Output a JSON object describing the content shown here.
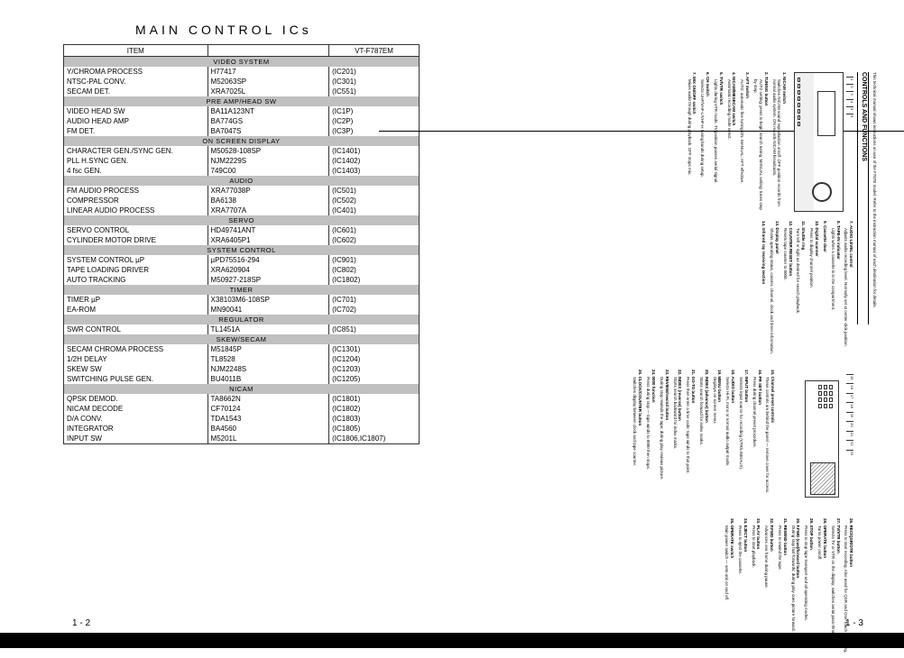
{
  "title": "MAIN CONTROL ICs",
  "page_left": "1 - 2",
  "page_right": "1 - 3",
  "header": {
    "c1": "ITEM",
    "c3": "VT-F787EM"
  },
  "sections": [
    {
      "name": "VIDEO SYSTEM",
      "rows": [
        [
          "Y/CHROMA PROCESS",
          "H77417",
          "(IC201)"
        ],
        [
          "NTSC-PAL CONV.",
          "M52063SP",
          "(IC301)"
        ],
        [
          "SECAM DET.",
          "XRA7025L",
          "(IC551)"
        ]
      ]
    },
    {
      "name": "PRE AMP/HEAD SW",
      "rows": [
        [
          "VIDEO HEAD SW",
          "BA11A123NT",
          "(IC1P)"
        ],
        [
          "AUDIO HEAD AMP",
          "BA774GS",
          "(IC2P)"
        ],
        [
          "FM DET.",
          "BA7047S",
          "(IC3P)"
        ]
      ]
    },
    {
      "name": "ON SCREEN DISPLAY",
      "rows": [
        [
          "CHARACTER GEN./SYNC GEN.",
          "M50528-108SP",
          "(IC1401)"
        ],
        [
          "PLL H.SYNC GEN.",
          "NJM2229S",
          "(IC1402)"
        ],
        [
          "4 fsc GEN.",
          "749C00",
          "(IC1403)"
        ]
      ]
    },
    {
      "name": "AUDIO",
      "rows": [
        [
          "FM AUDIO PROCESS",
          "XRA77038P",
          "(IC501)"
        ],
        [
          "COMPRESSOR",
          "BA6138",
          "(IC502)"
        ],
        [
          "LINEAR AUDIO PROCESS",
          "XRA7707A",
          "(IC401)"
        ]
      ]
    },
    {
      "name": "SERVO",
      "rows": [
        [
          "SERVO CONTROL",
          "HD49741ANT",
          "(IC601)"
        ],
        [
          "CYLINDER MOTOR DRIVE",
          "XRA6405P1",
          "(IC602)"
        ]
      ]
    },
    {
      "name": "SYSTEM CONTROL",
      "rows": [
        [
          "SYSTEM CONTROL µP",
          "µPD75516-294",
          "(IC901)"
        ],
        [
          "TAPE LOADING DRIVER",
          "XRA620904",
          "(IC802)"
        ],
        [
          "AUTO TRACKING",
          "M50927-218SP",
          "(IC1802)"
        ]
      ]
    },
    {
      "name": "TIMER",
      "rows": [
        [
          "TIMER µP",
          "X38103M6-108SP",
          "(IC701)"
        ],
        [
          "EA-ROM",
          "MN90041",
          "(IC702)"
        ]
      ]
    },
    {
      "name": "REGULATOR",
      "rows": [
        [
          "SWR CONTROL",
          "TL1451A",
          "(IC851)"
        ]
      ]
    },
    {
      "name": "SKEW/SECAM",
      "rows": [
        [
          "SECAM CHROMA PROCESS",
          "M51845P",
          "(IC1301)"
        ],
        [
          "1/2H DELAY",
          "TL8528",
          "(IC1204)"
        ],
        [
          "SKEW SW",
          "NJM2248S",
          "(IC1203)"
        ],
        [
          "SWITCHING PULSE GEN.",
          "BU4011B",
          "(IC1205)"
        ]
      ]
    },
    {
      "name": "NICAM",
      "rows": [
        [
          "QPSK DEMOD.",
          "TA8662N",
          "(IC1801)"
        ],
        [
          "NICAM DECODE",
          "CF70124",
          "(IC1802)"
        ],
        [
          "D/A CONV.",
          "TDA1543",
          "(IC1803)"
        ],
        [
          "INTEGRATOR",
          "BA4560",
          "(IC1805)"
        ],
        [
          "INPUT SW",
          "M5201L",
          "(IC1806,IC1807)"
        ]
      ]
    }
  ],
  "controls_header": "CONTROLS AND FUNCTIONS",
  "intro": "This technical manual shows instructions on use of the F787E model. Refer to the instruction manual of each destination for details.",
  "front_items": [
    {
      "n": "1",
      "t": "NICAM switch",
      "d": "Switches NICAM sound reproduction on/off. OFF position records from normal audio system. ON records NICAM broadcasts."
    },
    {
      "n": "2",
      "t": "TUNING button",
      "d": "AUTO setting: press to begin search tuning. MANUAL setting: tunes step by step."
    },
    {
      "n": "3",
      "t": "AFT switch",
      "d": "AUTO: automatic fine tuning ON. MANUAL: AFT effective."
    },
    {
      "n": "4",
      "t": "NICAM/MESECAM switch",
      "d": "Automatic recording mode select."
    },
    {
      "n": "5",
      "t": "TV/VTR switch",
      "d": "Lights during VTR mode. TV position passes aerial signal."
    },
    {
      "n": "6",
      "t": "CH switch",
      "d": "Selects UHF/VHF-L/VHF-H tuning bands during setup."
    },
    {
      "n": "7",
      "t": "MIX ON/OFF switch",
      "d": "Mixes audio through during playback. OFF stops mix."
    },
    {
      "n": "7",
      "t": "AUDIO LEVEL control",
      "d": "Adjusts audio recording level. Normally set at center click position."
    },
    {
      "n": "8",
      "t": "TAPE-IN indicator",
      "d": "Lights when a cassette is in the compartment."
    },
    {
      "n": "9",
      "t": "Cassette door",
      "d": ""
    },
    {
      "n": "10",
      "t": "Digital scanner",
      "d": "Press to display channel position."
    },
    {
      "n": "11",
      "t": "Shuttle ring",
      "d": "Turn left or right as desired for search playback."
    },
    {
      "n": "12",
      "t": "COUNTER RESET button",
      "d": "Resets tape counter to 0000."
    },
    {
      "n": "13",
      "t": "Display panel",
      "d": "Shows operating status, counter, channel, clock and timer information."
    },
    {
      "n": "14",
      "t": "Infrared ray receiving section",
      "d": ""
    }
  ],
  "panel_items": [
    {
      "n": "15",
      "t": "Channel preset controls",
      "d": "These controls are behind the panel — remove cover for access."
    },
    {
      "n": "16",
      "t": "PR SET button",
      "d": "Press during channel preset procedure."
    },
    {
      "n": "17",
      "t": "INPUT button",
      "d": "Selects input source for recording (VTR/LINE/AUX)."
    },
    {
      "n": "18",
      "t": "AUDIO button",
      "d": "Selects Hi-Fi, mono or normal audio output mode."
    },
    {
      "n": "19",
      "t": "MENU button",
      "d": "Displays on-screen menu."
    },
    {
      "n": "20",
      "t": "INDEX (advance) button",
      "d": "Starts search forward for index marks."
    },
    {
      "n": "21",
      "t": "GO-TO button",
      "d": "Press then enter a time code; tape winds to that point."
    },
    {
      "n": "22",
      "t": "INDEX (reverse) button",
      "d": "Starts search backward for index marks."
    },
    {
      "n": "23",
      "t": "REVIEW/rewind button",
      "d": "During stop rewinds the tape; during play reviews picture."
    },
    {
      "n": "24",
      "t": "0000 function",
      "d": "Press during stop — tape winds to 0000 then stops."
    },
    {
      "n": "25",
      "t": "CLOCK/COUNTER button",
      "d": "Switches display between clock and tape counter."
    },
    {
      "n": "26",
      "t": "REC/QSR/OTR button",
      "d": "Press to start recording. Also used for QSR and One-Touch Recording."
    },
    {
      "n": "27",
      "t": "TV/VTR button",
      "d": "Selects TV or VTR on the display; switches aerial pass-through."
    },
    {
      "n": "28",
      "t": "OPERATE button",
      "d": "Turns power on/off."
    },
    {
      "n": "29",
      "t": "STOP button",
      "d": "Press to stop tape transport and all operating modes."
    },
    {
      "n": "30",
      "t": "F.FWD (cue)/forward button",
      "d": "During stop fast-forwards; during play cues picture forward."
    },
    {
      "n": "31",
      "t": "REWIND button",
      "d": "Press to rewind the tape."
    },
    {
      "n": "32",
      "t": "P.FWD button",
      "d": "Advances one frame during pause."
    },
    {
      "n": "33",
      "t": "PLAY button",
      "d": "Press to start playback."
    },
    {
      "n": "34",
      "t": "EJECT button",
      "d": "Press to eject the cassette."
    },
    {
      "n": "35",
      "t": "OPERATE switch",
      "d": "Main power switch — sets unit on and off."
    }
  ]
}
